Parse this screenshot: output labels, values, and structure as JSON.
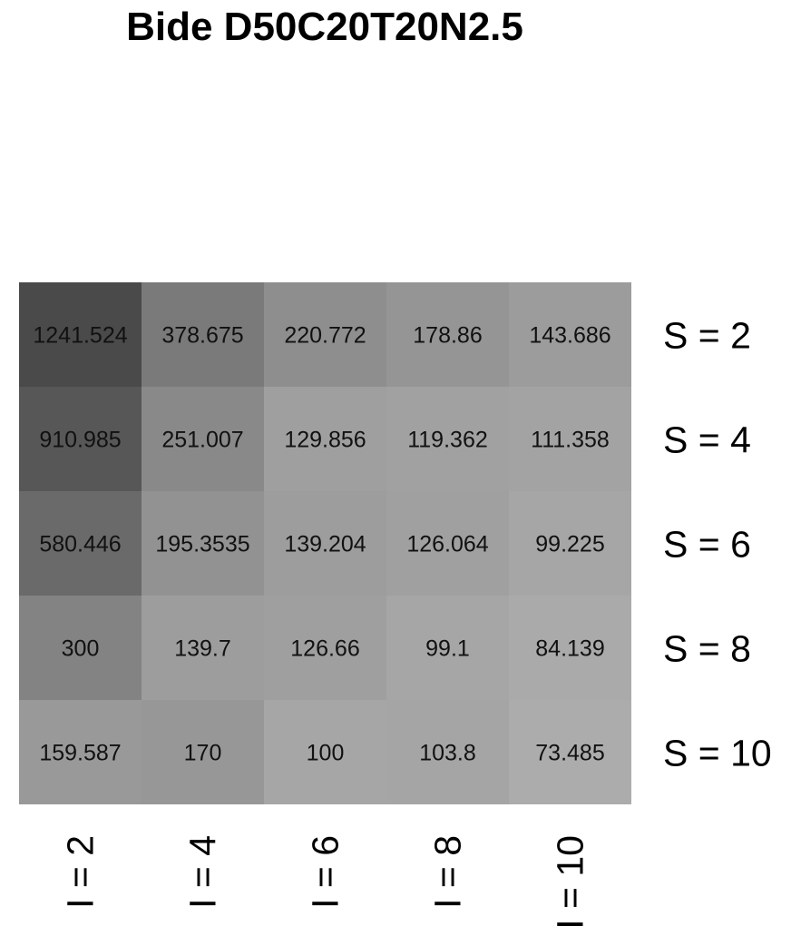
{
  "chart_data": {
    "type": "heatmap",
    "title": "Bide D50C20T20N2.5",
    "row_labels": [
      "S = 2",
      "S = 4",
      "S = 6",
      "S = 8",
      "S = 10"
    ],
    "col_labels": [
      "I = 2",
      "I = 4",
      "I = 6",
      "I = 8",
      "I = 10"
    ],
    "value_labels": [
      [
        "1241.524",
        "378.675",
        "220.772",
        "178.86",
        "143.686"
      ],
      [
        "910.985",
        "251.007",
        "129.856",
        "119.362",
        "111.358"
      ],
      [
        "580.446",
        "195.3535",
        "139.204",
        "126.064",
        "99.225"
      ],
      [
        "300",
        "139.7",
        "126.66",
        "99.1",
        "84.139"
      ],
      [
        "159.587",
        "170",
        "100",
        "103.8",
        "73.485"
      ]
    ],
    "values": [
      [
        1241.524,
        378.675,
        220.772,
        178.86,
        143.686
      ],
      [
        910.985,
        251.007,
        129.856,
        119.362,
        111.358
      ],
      [
        580.446,
        195.3535,
        139.204,
        126.064,
        99.225
      ],
      [
        300,
        139.7,
        126.66,
        99.1,
        84.139
      ],
      [
        159.587,
        170,
        100,
        103.8,
        73.485
      ]
    ],
    "color_scale": {
      "low_color": "#acacac",
      "high_color": "#4a4a4a"
    },
    "row_labels_position": "right",
    "col_labels_position": "bottom",
    "col_labels_rotation": "vertical",
    "grid": false,
    "legend": "none"
  }
}
